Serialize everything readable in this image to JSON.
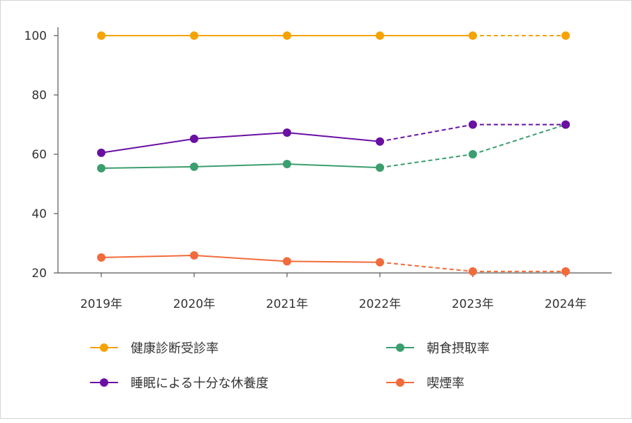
{
  "chart_data": {
    "type": "line",
    "title": "",
    "xlabel": "",
    "ylabel": "",
    "categories": [
      "2019年",
      "2020年",
      "2021年",
      "2022年",
      "2023年",
      "2024年"
    ],
    "ylim": [
      20,
      100
    ],
    "yticks": [
      "20",
      "40",
      "60",
      "80",
      "100"
    ],
    "grid": false,
    "legend_position": "bottom",
    "series": [
      {
        "name": "健康診断受診率",
        "color": "#f5a300",
        "values": [
          100,
          100,
          100,
          100,
          100,
          100
        ],
        "dashed_from_index": 4
      },
      {
        "name": "朝食摂取率",
        "color": "#3a9e6e",
        "values": [
          55.3,
          55.8,
          56.7,
          55.5,
          60.0,
          70.0
        ],
        "dashed_from_index": 3
      },
      {
        "name": "睡眠による十分な休養度",
        "color": "#6a0fa3",
        "values": [
          60.5,
          65.2,
          67.3,
          64.3,
          70.0,
          70.0
        ],
        "dashed_from_index": 3
      },
      {
        "name": "喫煙率",
        "color": "#f26b3a",
        "values": [
          25.2,
          25.9,
          23.9,
          23.6,
          20.5,
          20.5
        ],
        "dashed_from_index": 3
      }
    ]
  }
}
